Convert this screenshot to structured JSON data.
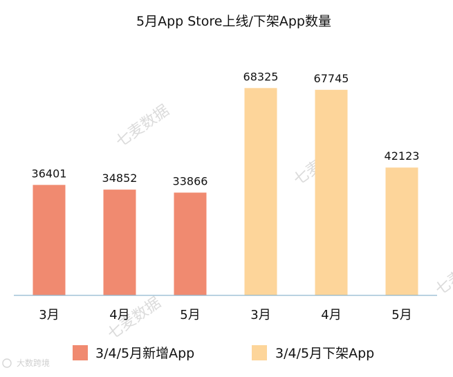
{
  "chart_data": {
    "type": "bar",
    "title": "5月App Store上线/下架App数量",
    "categories": [
      "3月",
      "4月",
      "5月",
      "3月",
      "4月",
      "5月"
    ],
    "series": [
      {
        "name": "3/4/5月新增App",
        "color": "#f08a70",
        "values": [
          36401,
          34852,
          33866,
          null,
          null,
          null
        ]
      },
      {
        "name": "3/4/5月下架App",
        "color": "#fdd59a",
        "values": [
          null,
          null,
          null,
          68325,
          67745,
          42123
        ]
      }
    ],
    "data_labels": [
      "36401",
      "34852",
      "33866",
      "68325",
      "67745",
      "42123"
    ],
    "ylim": [
      0,
      75000
    ],
    "grid": false,
    "legend_position": "bottom",
    "axis_color": "#8fb7cf"
  },
  "watermarks": [
    {
      "text": "七麦数据"
    },
    {
      "text": "七麦数据"
    },
    {
      "text": "七麦数据"
    },
    {
      "text": "七麦数据"
    }
  ],
  "logo": {
    "text": "大数跨境"
  }
}
